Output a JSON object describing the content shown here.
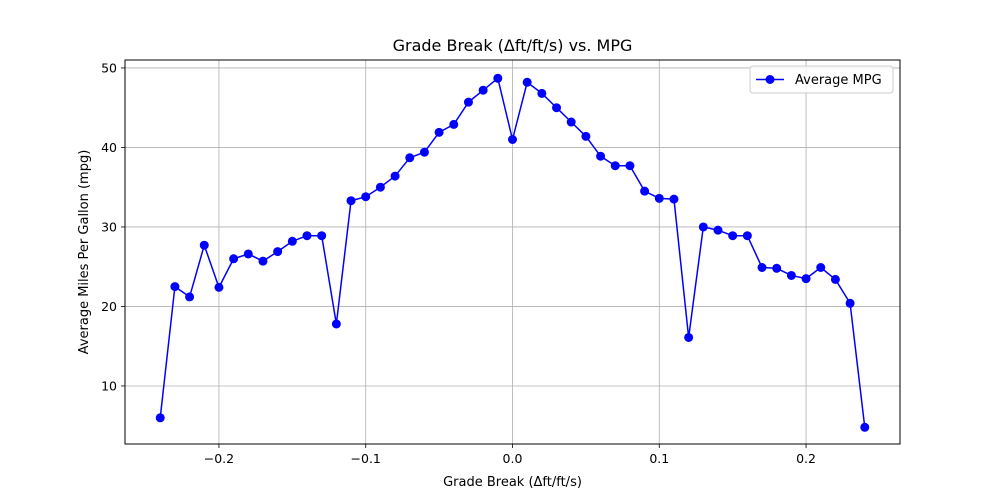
{
  "chart_data": {
    "type": "line",
    "title": "Grade Break (Δft/ft/s) vs. MPG",
    "xlabel": "Grade Break (Δft/ft/s)",
    "ylabel": "Average Miles Per Gallon (mpg)",
    "xlim": [
      -0.264,
      0.264
    ],
    "ylim": [
      2.7,
      51.0
    ],
    "xticks": [
      -0.2,
      -0.1,
      0.0,
      0.1,
      0.2
    ],
    "xtick_labels": [
      "−0.2",
      "−0.1",
      "0.0",
      "0.1",
      "0.2"
    ],
    "yticks": [
      10,
      20,
      30,
      40,
      50
    ],
    "ytick_labels": [
      "10",
      "20",
      "30",
      "40",
      "50"
    ],
    "grid": true,
    "legend_position": "top-right",
    "series": [
      {
        "name": "Average MPG",
        "color": "#0000ff",
        "marker": "circle",
        "x": [
          -0.24,
          -0.23,
          -0.22,
          -0.21,
          -0.2,
          -0.19,
          -0.18,
          -0.17,
          -0.16,
          -0.15,
          -0.14,
          -0.13,
          -0.12,
          -0.11,
          -0.1,
          -0.09,
          -0.08,
          -0.07,
          -0.06,
          -0.05,
          -0.04,
          -0.03,
          -0.02,
          -0.01,
          0.0,
          0.01,
          0.02,
          0.03,
          0.04,
          0.05,
          0.06,
          0.07,
          0.08,
          0.09,
          0.1,
          0.11,
          0.12,
          0.13,
          0.14,
          0.15,
          0.16,
          0.17,
          0.18,
          0.19,
          0.2,
          0.21,
          0.22,
          0.23,
          0.24
        ],
        "y": [
          6.0,
          22.5,
          21.2,
          27.7,
          22.4,
          26.0,
          26.6,
          25.7,
          26.9,
          28.2,
          28.9,
          28.9,
          17.8,
          33.3,
          33.8,
          35.0,
          36.4,
          38.7,
          39.4,
          41.9,
          42.9,
          45.7,
          47.2,
          48.7,
          41.0,
          48.2,
          46.8,
          45.0,
          43.2,
          41.4,
          38.9,
          37.7,
          37.7,
          34.5,
          33.6,
          33.5,
          16.1,
          30.0,
          29.6,
          28.9,
          28.9,
          24.9,
          24.8,
          23.9,
          23.5,
          24.9,
          23.4,
          20.4,
          4.8
        ]
      }
    ]
  }
}
